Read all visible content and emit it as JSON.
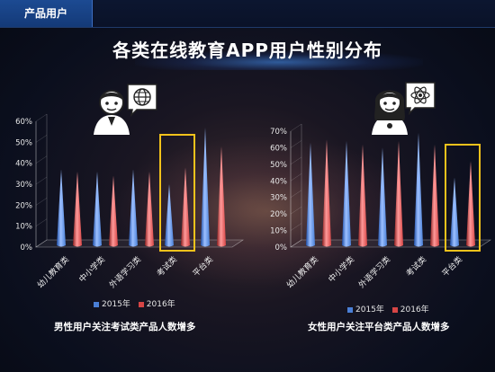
{
  "section_tag": "产品用户",
  "title": "各类在线教育APP用户性别分布",
  "colors": {
    "series_2015": "#4a7fd6",
    "series_2016": "#d64545",
    "highlight": "#f2c21b"
  },
  "charts": {
    "male": {
      "caption": "男性用户关注考试类产品人数增多",
      "icon": "male-user-globe-icon"
    },
    "female": {
      "caption": "女性用户关注平台类产品人数增多",
      "icon": "female-user-atom-icon"
    }
  },
  "chart_data": [
    {
      "type": "bar",
      "categories": [
        "幼儿教育类",
        "中小学类",
        "外语学习类",
        "考试类",
        "平台类"
      ],
      "series": [
        {
          "name": "2015年",
          "values": [
            37,
            36,
            37,
            30,
            57
          ]
        },
        {
          "name": "2016年",
          "values": [
            36,
            34,
            36,
            38,
            48
          ]
        }
      ],
      "yticks": [
        "0%",
        "10%",
        "20%",
        "30%",
        "40%",
        "50%",
        "60%"
      ],
      "ylim": [
        0,
        60
      ],
      "highlight_category": "考试类",
      "legend": "bottom"
    },
    {
      "type": "bar",
      "categories": [
        "幼儿教育类",
        "中小学类",
        "外语学习类",
        "考试类",
        "平台类"
      ],
      "series": [
        {
          "name": "2015年",
          "values": [
            63,
            64,
            60,
            69,
            42
          ]
        },
        {
          "name": "2016年",
          "values": [
            65,
            62,
            64,
            62,
            52
          ]
        }
      ],
      "yticks": [
        "0%",
        "10%",
        "20%",
        "30%",
        "40%",
        "50%",
        "60%",
        "70%"
      ],
      "ylim": [
        0,
        70
      ],
      "highlight_category": "平台类",
      "legend": "bottom"
    }
  ]
}
